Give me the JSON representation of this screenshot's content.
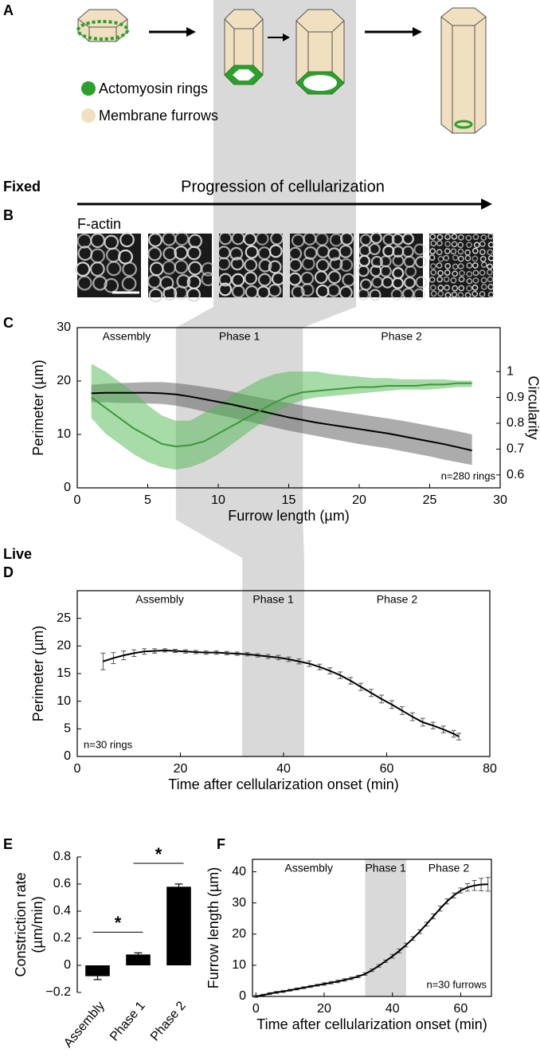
{
  "figure": {
    "panel_labels": [
      "A",
      "B",
      "C",
      "D",
      "E",
      "F"
    ],
    "legend": [
      "Actomyosin rings",
      "Membrane furrows"
    ],
    "section_labels": [
      "Fixed",
      "Live"
    ],
    "progression": "Progression of cellularization",
    "stain": "F-actin"
  },
  "chart_data": [
    {
      "type": "line",
      "xlabel": "Furrow length (µm)",
      "ylabel": "Perimeter (µm)",
      "y2label": "Circularity",
      "xlim": [
        0,
        30
      ],
      "xticks": [
        0,
        5,
        10,
        15,
        20,
        25,
        30
      ],
      "ylim": [
        0,
        30
      ],
      "yticks": [
        0,
        10,
        20,
        30
      ],
      "y2lim": [
        0.55,
        1.17
      ],
      "y2ticks": [
        0.6,
        0.7,
        0.8,
        0.9,
        1
      ],
      "phases": [
        "Assembly",
        "Phase 1",
        "Phase 2"
      ],
      "shade": [
        7,
        16
      ],
      "annotation": "n=280 rings",
      "x": [
        1,
        2,
        3,
        4,
        5,
        6,
        7,
        8,
        9,
        10,
        11,
        12,
        13,
        14,
        15,
        16,
        17,
        18,
        19,
        20,
        21,
        22,
        23,
        24,
        25,
        26,
        27,
        28
      ],
      "series": [
        {
          "color": "#000000",
          "band_color": "#5a5a5a",
          "values": [
            17.7,
            17.8,
            17.8,
            17.8,
            17.8,
            17.7,
            17.5,
            17.1,
            16.6,
            16.1,
            15.6,
            15.0,
            14.4,
            13.8,
            13.2,
            12.7,
            12.2,
            11.8,
            11.4,
            11.0,
            10.6,
            10.2,
            9.7,
            9.2,
            8.7,
            8.2,
            7.6,
            7.0
          ],
          "upper": [
            19.3,
            19.5,
            19.6,
            19.7,
            19.8,
            19.8,
            19.6,
            19.3,
            18.9,
            18.5,
            18.0,
            17.4,
            16.9,
            16.4,
            15.9,
            15.4,
            15.0,
            14.6,
            14.2,
            13.8,
            13.4,
            13.0,
            12.6,
            12.1,
            11.6,
            11.1,
            10.6,
            10.0
          ],
          "lower": [
            16.0,
            16.0,
            15.9,
            15.9,
            15.8,
            15.7,
            15.4,
            14.9,
            14.3,
            13.7,
            13.1,
            12.5,
            11.9,
            11.3,
            10.7,
            10.2,
            9.7,
            9.2,
            8.7,
            8.2,
            7.8,
            7.4,
            6.9,
            6.4,
            5.9,
            5.3,
            4.8,
            4.3
          ]
        },
        {
          "color": "#3a9a3a",
          "band_color": "#4fb84f",
          "axis": "y2",
          "values": [
            0.9,
            0.86,
            0.82,
            0.78,
            0.75,
            0.72,
            0.71,
            0.715,
            0.73,
            0.76,
            0.79,
            0.82,
            0.85,
            0.88,
            0.905,
            0.92,
            0.925,
            0.93,
            0.935,
            0.94,
            0.94,
            0.945,
            0.945,
            0.945,
            0.95,
            0.95,
            0.955,
            0.955
          ],
          "upper": [
            1.03,
            1.0,
            0.96,
            0.92,
            0.87,
            0.83,
            0.81,
            0.81,
            0.84,
            0.87,
            0.91,
            0.94,
            0.97,
            0.99,
            1.0,
            1.0,
            1.0,
            0.99,
            0.985,
            0.98,
            0.975,
            0.975,
            0.97,
            0.97,
            0.97,
            0.97,
            0.965,
            0.965
          ],
          "lower": [
            0.82,
            0.76,
            0.72,
            0.68,
            0.65,
            0.63,
            0.62,
            0.63,
            0.65,
            0.68,
            0.72,
            0.76,
            0.8,
            0.84,
            0.87,
            0.89,
            0.9,
            0.905,
            0.91,
            0.915,
            0.92,
            0.925,
            0.93,
            0.93,
            0.93,
            0.935,
            0.94,
            0.94
          ]
        }
      ]
    },
    {
      "type": "line",
      "xlabel": "Time after cellularization onset (min)",
      "ylabel": "Perimeter (µm)",
      "xlim": [
        0,
        80
      ],
      "xticks": [
        0,
        20,
        40,
        60,
        80
      ],
      "ylim": [
        0,
        30
      ],
      "yticks": [
        0,
        5,
        10,
        15,
        20,
        25
      ],
      "phases": [
        "Assembly",
        "Phase 1",
        "Phase 2"
      ],
      "shade": [
        32,
        44
      ],
      "annotation": "n=30 rings",
      "x": [
        5,
        7,
        9,
        11,
        13,
        15,
        17,
        19,
        21,
        23,
        25,
        27,
        29,
        31,
        33,
        35,
        37,
        39,
        41,
        43,
        45,
        47,
        49,
        51,
        53,
        55,
        57,
        59,
        61,
        63,
        65,
        67,
        69,
        71,
        73,
        74
      ],
      "series": [
        {
          "color": "#000000",
          "values": [
            17.2,
            17.8,
            18.3,
            18.7,
            19.0,
            19.1,
            19.2,
            19.1,
            19.0,
            18.9,
            18.8,
            18.8,
            18.7,
            18.6,
            18.5,
            18.3,
            18.1,
            17.9,
            17.6,
            17.2,
            16.8,
            16.2,
            15.5,
            14.7,
            13.7,
            12.6,
            11.5,
            10.4,
            9.4,
            8.3,
            7.2,
            6.2,
            5.6,
            4.9,
            4.1,
            3.6
          ],
          "errors": [
            1.5,
            1.0,
            0.8,
            0.6,
            0.5,
            0.4,
            0.3,
            0.3,
            0.3,
            0.3,
            0.3,
            0.3,
            0.3,
            0.3,
            0.3,
            0.3,
            0.35,
            0.4,
            0.4,
            0.45,
            0.5,
            0.5,
            0.55,
            0.6,
            0.6,
            0.65,
            0.65,
            0.7,
            0.7,
            0.7,
            0.7,
            0.7,
            0.6,
            0.6,
            0.6,
            0.6
          ]
        }
      ]
    },
    {
      "type": "bar",
      "ylabel": [
        "Constriction rate",
        "(µm/min)"
      ],
      "categories": [
        "Assembly",
        "Phase 1",
        "Phase 2"
      ],
      "values": [
        -0.08,
        0.08,
        0.58
      ],
      "errors": [
        0.025,
        0.012,
        0.02
      ],
      "color": "#000000",
      "ylim": [
        -0.2,
        0.8
      ],
      "yticks": [
        {
          "value": -0.2,
          "label": "−0.2"
        },
        0,
        0.2,
        0.4,
        0.6,
        0.8
      ],
      "annotations": [
        "*",
        "*"
      ]
    },
    {
      "type": "line",
      "xlabel": "Time after cellularization onset (min)",
      "ylabel": "Furrow length (µm)",
      "xlim": [
        -1,
        69
      ],
      "xticks": [
        0,
        20,
        40,
        60
      ],
      "ylim": [
        0,
        44
      ],
      "yticks": [
        0,
        10,
        20,
        30,
        40
      ],
      "phases": [
        "Assembly",
        "Phase 1",
        "Phase 2"
      ],
      "shade": [
        32,
        44
      ],
      "annotation": "n=30 furrows",
      "x": [
        0,
        2,
        4,
        6,
        8,
        10,
        12,
        14,
        16,
        18,
        20,
        22,
        24,
        26,
        28,
        30,
        32,
        34,
        36,
        38,
        40,
        42,
        44,
        46,
        48,
        50,
        52,
        54,
        56,
        58,
        60,
        62,
        64,
        66,
        68
      ],
      "series": [
        {
          "color": "#000000",
          "values": [
            0,
            0.4,
            0.9,
            1.3,
            1.6,
            2.0,
            2.4,
            2.8,
            3.2,
            3.6,
            4.0,
            4.4,
            4.8,
            5.3,
            5.8,
            6.4,
            7.2,
            8.4,
            9.8,
            11.3,
            12.9,
            14.6,
            16.5,
            18.6,
            20.8,
            23.2,
            25.7,
            28.2,
            30.5,
            32.4,
            34.0,
            35.0,
            35.6,
            35.9,
            36.0
          ],
          "errors": [
            0.3,
            0.3,
            0.3,
            0.3,
            0.3,
            0.3,
            0.3,
            0.3,
            0.3,
            0.3,
            0.4,
            0.4,
            0.4,
            0.4,
            0.4,
            0.4,
            0.4,
            0.4,
            0.4,
            0.4,
            0.6,
            0.6,
            0.6,
            0.6,
            0.6,
            0.6,
            0.8,
            0.8,
            0.8,
            0.8,
            0.8,
            1.2,
            1.6,
            2.0,
            2.2
          ]
        }
      ]
    }
  ]
}
